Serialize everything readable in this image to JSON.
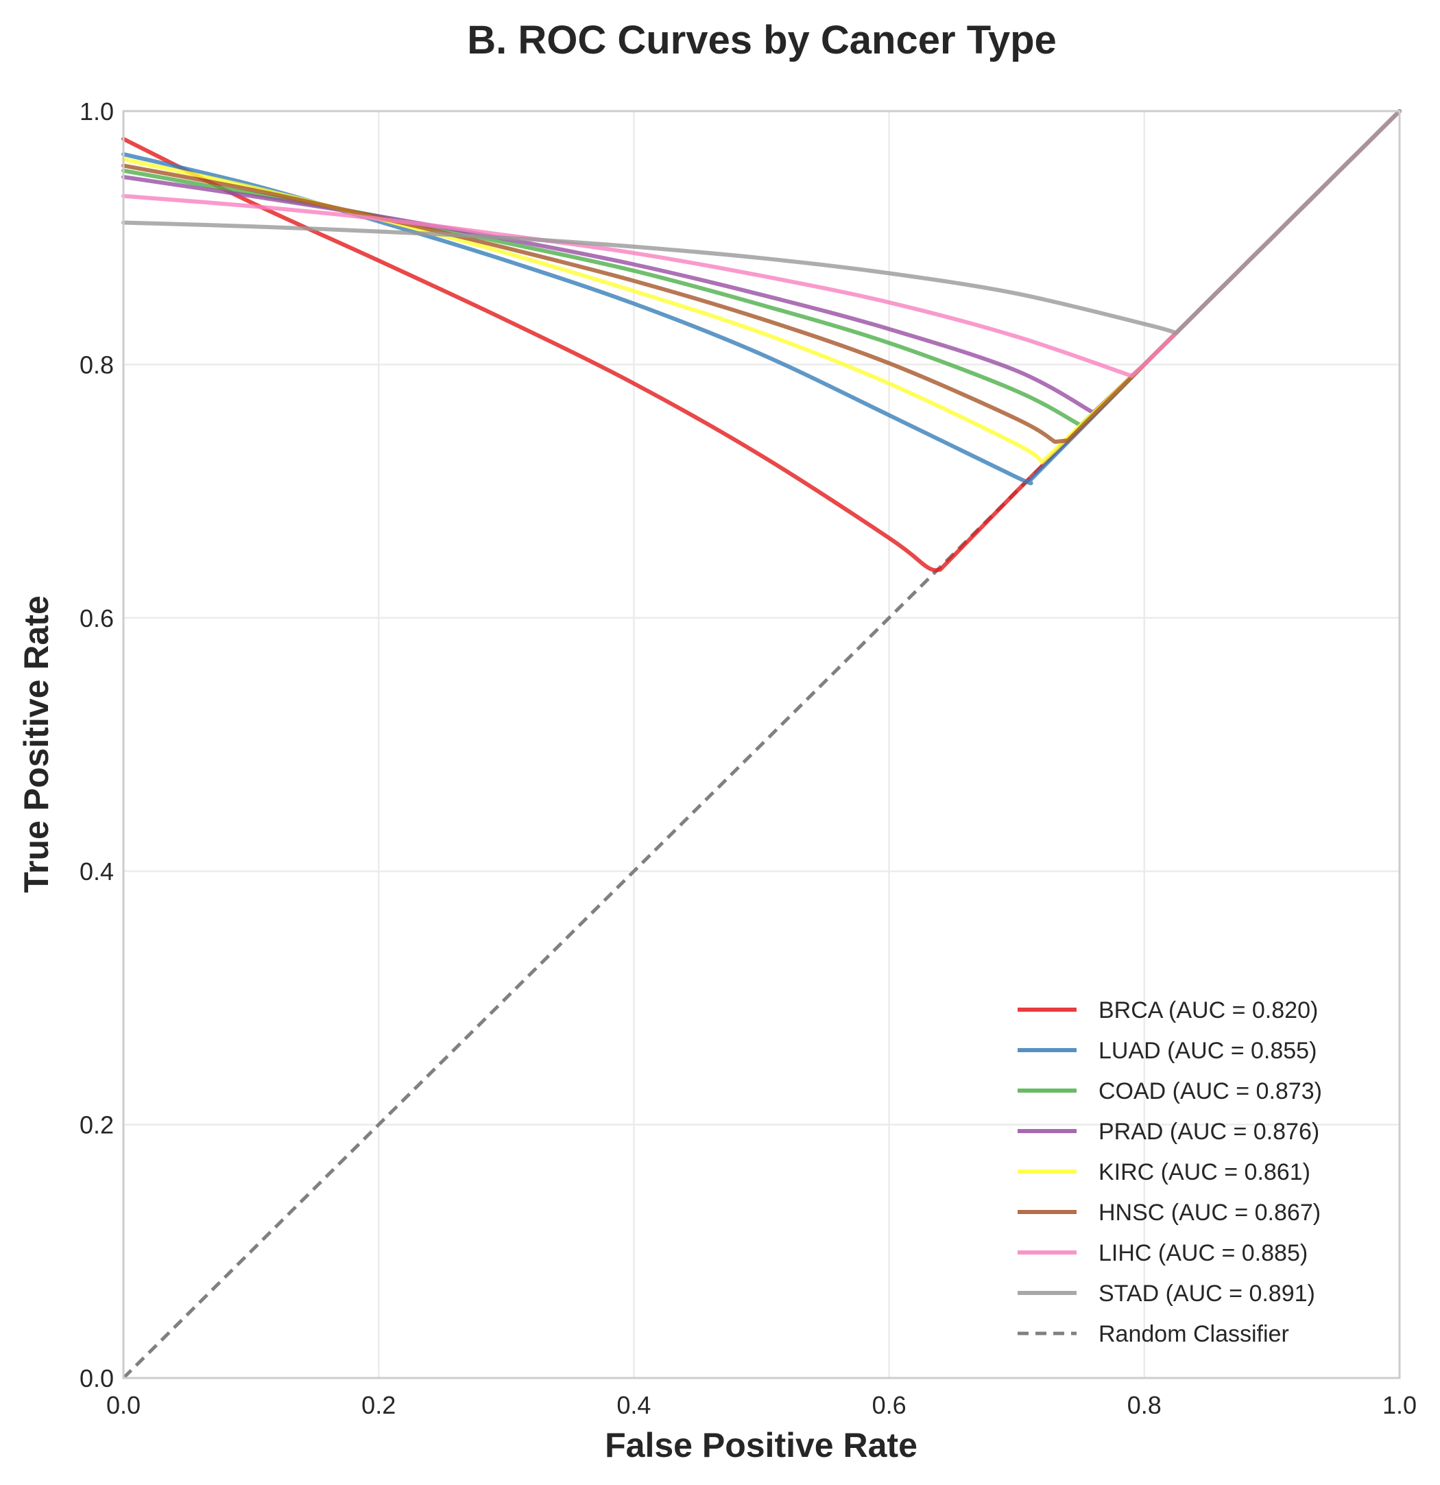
{
  "chart_data": {
    "type": "line",
    "title": "B. ROC Curves by Cancer Type",
    "xlabel": "False Positive Rate",
    "ylabel": "True Positive Rate",
    "xlim": [
      0.0,
      1.0
    ],
    "ylim": [
      0.0,
      1.0
    ],
    "xticks": [
      "0.0",
      "0.2",
      "0.4",
      "0.6",
      "0.8",
      "1.0"
    ],
    "yticks": [
      "0.0",
      "0.2",
      "0.4",
      "0.6",
      "0.8",
      "1.0"
    ],
    "grid": true,
    "legend_position": "lower-right",
    "series": [
      {
        "name": "BRCA (AUC = 0.820)",
        "color": "#e41a1c",
        "x": [
          0.0,
          0.1,
          0.2,
          0.3,
          0.4,
          0.5,
          0.6,
          0.63,
          0.64,
          0.7,
          0.8,
          0.9,
          1.0
        ],
        "y": [
          0.978,
          0.928,
          0.882,
          0.835,
          0.785,
          0.728,
          0.663,
          0.64,
          0.638,
          0.7,
          0.8,
          0.9,
          1.0
        ]
      },
      {
        "name": "LUAD (AUC = 0.855)",
        "color": "#377eb8",
        "x": [
          0.0,
          0.1,
          0.2,
          0.3,
          0.4,
          0.5,
          0.6,
          0.7,
          0.71,
          0.8,
          0.9,
          1.0
        ],
        "y": [
          0.966,
          0.942,
          0.913,
          0.882,
          0.848,
          0.808,
          0.76,
          0.711,
          0.708,
          0.8,
          0.9,
          1.0
        ]
      },
      {
        "name": "COAD (AUC = 0.873)",
        "color": "#4daf4a",
        "x": [
          0.0,
          0.1,
          0.2,
          0.3,
          0.4,
          0.5,
          0.6,
          0.7,
          0.75,
          0.8,
          0.9,
          1.0
        ],
        "y": [
          0.953,
          0.935,
          0.917,
          0.896,
          0.874,
          0.847,
          0.817,
          0.779,
          0.752,
          0.8,
          0.9,
          1.0
        ]
      },
      {
        "name": "PRAD (AUC = 0.876)",
        "color": "#984ea3",
        "x": [
          0.0,
          0.1,
          0.2,
          0.3,
          0.4,
          0.5,
          0.6,
          0.7,
          0.76,
          0.8,
          0.9,
          1.0
        ],
        "y": [
          0.948,
          0.933,
          0.917,
          0.899,
          0.879,
          0.855,
          0.828,
          0.795,
          0.762,
          0.8,
          0.9,
          1.0
        ]
      },
      {
        "name": "KIRC (AUC = 0.861)",
        "color": "#ffff33",
        "x": [
          0.0,
          0.1,
          0.2,
          0.3,
          0.4,
          0.5,
          0.6,
          0.7,
          0.72,
          0.8,
          0.9,
          1.0
        ],
        "y": [
          0.962,
          0.94,
          0.915,
          0.888,
          0.858,
          0.825,
          0.785,
          0.737,
          0.723,
          0.8,
          0.9,
          1.0
        ]
      },
      {
        "name": "HNSC (AUC = 0.867)",
        "color": "#a65628",
        "x": [
          0.0,
          0.1,
          0.2,
          0.3,
          0.4,
          0.5,
          0.6,
          0.7,
          0.73,
          0.74,
          0.8,
          0.9,
          1.0
        ],
        "y": [
          0.957,
          0.938,
          0.916,
          0.892,
          0.866,
          0.836,
          0.801,
          0.757,
          0.739,
          0.74,
          0.8,
          0.9,
          1.0
        ]
      },
      {
        "name": "LIHC (AUC = 0.885)",
        "color": "#f781bf",
        "x": [
          0.0,
          0.1,
          0.2,
          0.3,
          0.4,
          0.5,
          0.6,
          0.7,
          0.79,
          0.8,
          0.9,
          1.0
        ],
        "y": [
          0.933,
          0.925,
          0.915,
          0.902,
          0.888,
          0.87,
          0.849,
          0.822,
          0.791,
          0.8,
          0.9,
          1.0
        ]
      },
      {
        "name": "STAD (AUC = 0.891)",
        "color": "#999999",
        "x": [
          0.0,
          0.1,
          0.2,
          0.3,
          0.4,
          0.5,
          0.6,
          0.7,
          0.8,
          0.825,
          0.9,
          1.0
        ],
        "y": [
          0.912,
          0.909,
          0.905,
          0.9,
          0.893,
          0.884,
          0.872,
          0.856,
          0.832,
          0.825,
          0.9,
          1.0
        ]
      },
      {
        "name": "Random Classifier",
        "color": "#808080",
        "dashed": true,
        "x": [
          0.0,
          1.0
        ],
        "y": [
          0.0,
          1.0
        ]
      }
    ]
  }
}
